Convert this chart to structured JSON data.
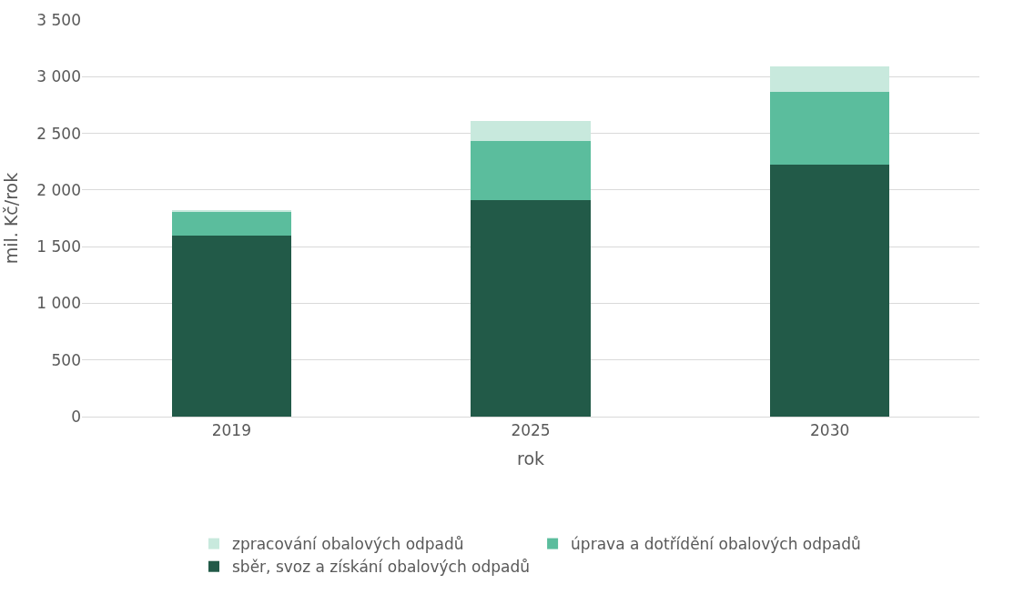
{
  "chart_data": {
    "type": "bar",
    "stacked": true,
    "xlabel": "rok",
    "ylabel": "mil. Kč/rok",
    "categories": [
      "2019",
      "2025",
      "2030"
    ],
    "series": [
      {
        "name": "sběr, svoz a získání obalových odpadů",
        "color": "#225a48",
        "values": [
          1600,
          1910,
          2220
        ]
      },
      {
        "name": "úprava a dotřídění obalových odpadů",
        "color": "#5bbd9d",
        "values": [
          205,
          520,
          645
        ]
      },
      {
        "name": "zpracování obalových odpadů",
        "color": "#c8e9dd",
        "values": [
          20,
          180,
          225
        ]
      }
    ],
    "ylim": [
      0,
      3500
    ],
    "yticks": [
      {
        "value": 0,
        "label": "0"
      },
      {
        "value": 500,
        "label": "500"
      },
      {
        "value": 1000,
        "label": "1 000"
      },
      {
        "value": 1500,
        "label": "1 500"
      },
      {
        "value": 2000,
        "label": "2 000"
      },
      {
        "value": 2500,
        "label": "2 500"
      },
      {
        "value": 3000,
        "label": "3 000"
      },
      {
        "value": 3500,
        "label": "3 500"
      }
    ],
    "grid": "y",
    "legend": "bottom"
  }
}
